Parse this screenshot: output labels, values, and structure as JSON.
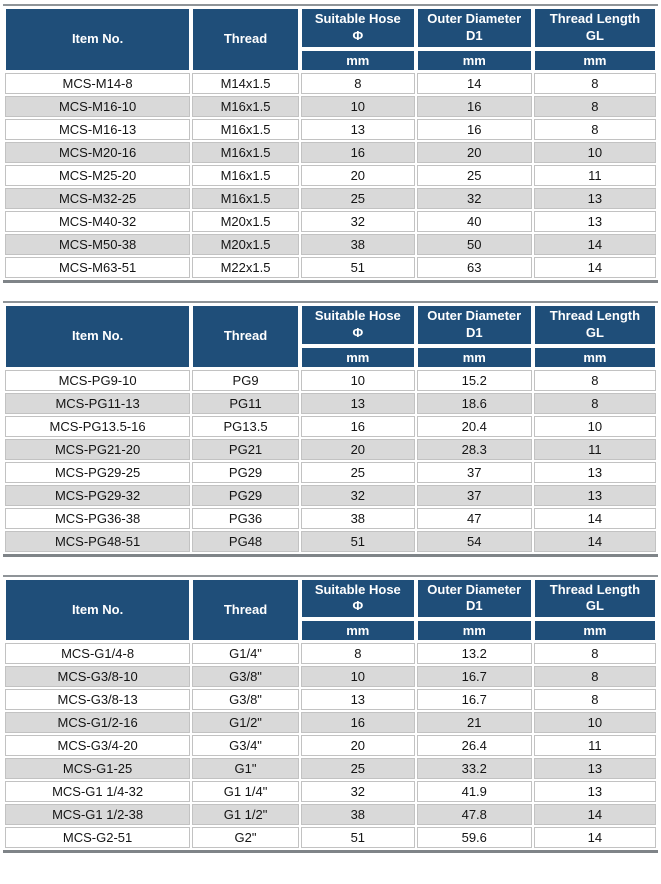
{
  "colors": {
    "header_bg": "#1F4E79",
    "header_text": "#ffffff",
    "row_bg": "#ffffff",
    "row_alt_bg": "#d9d9d9",
    "cell_border": "#c2c2c2",
    "table_edge": "#7f8488",
    "data_text": "#141414"
  },
  "header": {
    "item_no": "Item No.",
    "thread": "Thread",
    "measure_cols": [
      {
        "line1": "Suitable Hose",
        "line2": "Φ"
      },
      {
        "line1": "Outer Diameter",
        "line2": "D1"
      },
      {
        "line1": "Thread Length",
        "line2": "GL"
      }
    ],
    "unit": "mm"
  },
  "tables": [
    {
      "rows": [
        [
          "MCS-M14-8",
          "M14x1.5",
          "8",
          "14",
          "8"
        ],
        [
          "MCS-M16-10",
          "M16x1.5",
          "10",
          "16",
          "8"
        ],
        [
          "MCS-M16-13",
          "M16x1.5",
          "13",
          "16",
          "8"
        ],
        [
          "MCS-M20-16",
          "M16x1.5",
          "16",
          "20",
          "10"
        ],
        [
          "MCS-M25-20",
          "M16x1.5",
          "20",
          "25",
          "11"
        ],
        [
          "MCS-M32-25",
          "M16x1.5",
          "25",
          "32",
          "13"
        ],
        [
          "MCS-M40-32",
          "M20x1.5",
          "32",
          "40",
          "13"
        ],
        [
          "MCS-M50-38",
          "M20x1.5",
          "38",
          "50",
          "14"
        ],
        [
          "MCS-M63-51",
          "M22x1.5",
          "51",
          "63",
          "14"
        ]
      ]
    },
    {
      "rows": [
        [
          "MCS-PG9-10",
          "PG9",
          "10",
          "15.2",
          "8"
        ],
        [
          "MCS-PG11-13",
          "PG11",
          "13",
          "18.6",
          "8"
        ],
        [
          "MCS-PG13.5-16",
          "PG13.5",
          "16",
          "20.4",
          "10"
        ],
        [
          "MCS-PG21-20",
          "PG21",
          "20",
          "28.3",
          "11"
        ],
        [
          "MCS-PG29-25",
          "PG29",
          "25",
          "37",
          "13"
        ],
        [
          "MCS-PG29-32",
          "PG29",
          "32",
          "37",
          "13"
        ],
        [
          "MCS-PG36-38",
          "PG36",
          "38",
          "47",
          "14"
        ],
        [
          "MCS-PG48-51",
          "PG48",
          "51",
          "54",
          "14"
        ]
      ]
    },
    {
      "rows": [
        [
          "MCS-G1/4-8",
          "G1/4\"",
          "8",
          "13.2",
          "8"
        ],
        [
          "MCS-G3/8-10",
          "G3/8\"",
          "10",
          "16.7",
          "8"
        ],
        [
          "MCS-G3/8-13",
          "G3/8\"",
          "13",
          "16.7",
          "8"
        ],
        [
          "MCS-G1/2-16",
          "G1/2\"",
          "16",
          "21",
          "10"
        ],
        [
          "MCS-G3/4-20",
          "G3/4\"",
          "20",
          "26.4",
          "11"
        ],
        [
          "MCS-G1-25",
          "G1\"",
          "25",
          "33.2",
          "13"
        ],
        [
          "MCS-G1 1/4-32",
          "G1 1/4\"",
          "32",
          "41.9",
          "13"
        ],
        [
          "MCS-G1 1/2-38",
          "G1 1/2\"",
          "38",
          "47.8",
          "14"
        ],
        [
          "MCS-G2-51",
          "G2\"",
          "51",
          "59.6",
          "14"
        ]
      ]
    }
  ]
}
